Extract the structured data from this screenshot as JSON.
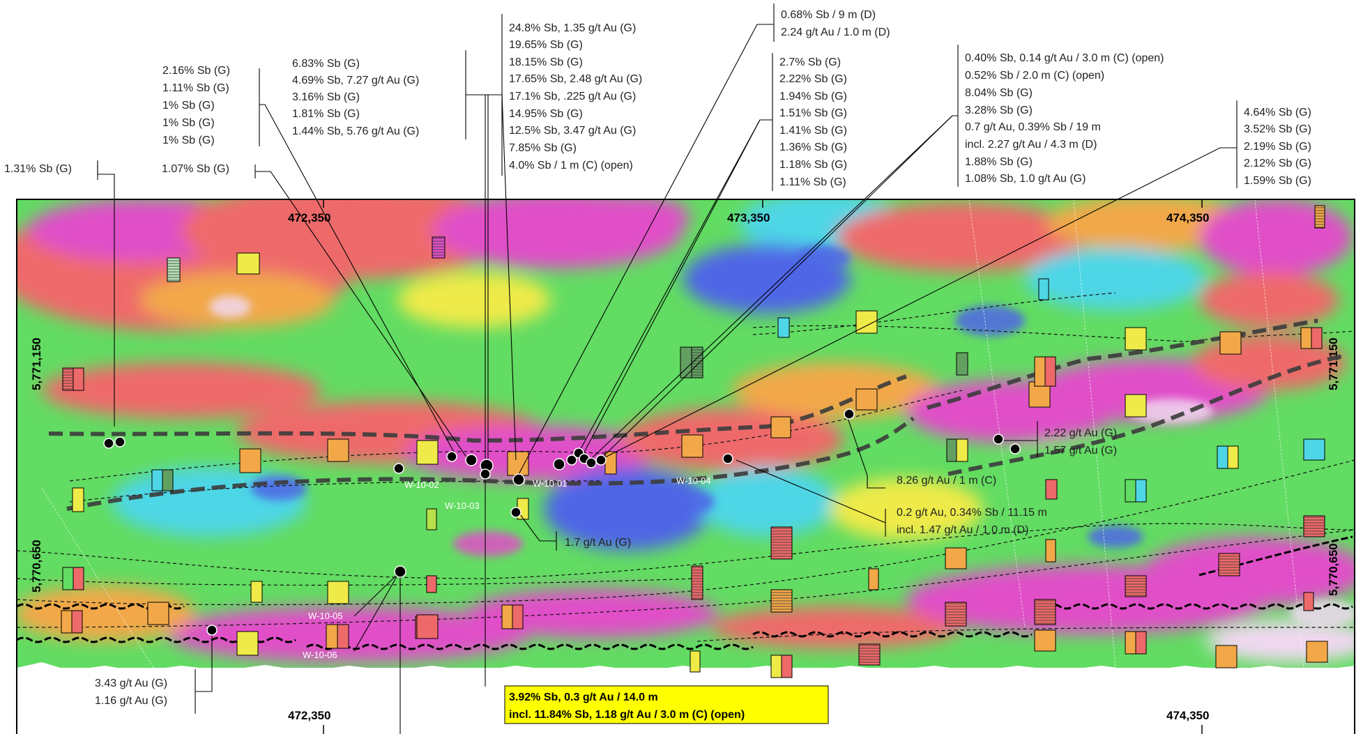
{
  "coordinates": {
    "easting_top": [
      "472,350",
      "473,350",
      "474,350"
    ],
    "easting_bottom": [
      "472,350",
      "474,350"
    ],
    "northing_left": [
      "5,771,150",
      "5,770,650"
    ],
    "northing_right": [
      "5,771,150",
      "5,770,650"
    ]
  },
  "drill_holes": [
    "W-10-02",
    "W-10-01",
    "W-10-03",
    "W-10-04",
    "W-10-05",
    "W-10-06"
  ],
  "callouts": {
    "c1": [
      "1.31% Sb (G)"
    ],
    "c2": [
      "2.16% Sb (G)",
      "1.11% Sb (G)",
      "1% Sb (G)",
      "1% Sb (G)",
      "1% Sb (G)"
    ],
    "c3": [
      "1.07% Sb (G)"
    ],
    "c4": [
      "6.83% Sb (G)",
      "4.69% Sb, 7.27 g/t Au (G)",
      "3.16% Sb (G)",
      "1.81% Sb (G)",
      "1.44% Sb, 5.76 g/t Au (G)"
    ],
    "c5": [
      "24.8% Sb, 1.35 g/t Au  (G)",
      "19.65% Sb (G)",
      "18.15% Sb (G)",
      "17.65% Sb, 2.48 g/t Au (G)",
      "17.1% Sb, .225 g/t Au (G)",
      "14.95% Sb (G)",
      "12.5% Sb, 3.47 g/t Au (G)",
      "7.85% Sb (G)",
      "4.0% Sb / 1 m (C) (open)"
    ],
    "c6": [
      "0.68% Sb / 9 m (D)",
      "2.24 g/t Au / 1.0 m (D)"
    ],
    "c7": [
      "2.7% Sb (G)",
      "2.22% Sb (G)",
      "1.94% Sb (G)",
      "1.51% Sb (G)",
      "1.41% Sb (G)",
      "1.36% Sb (G)",
      "1.18% Sb (G)",
      "1.11% Sb (G)"
    ],
    "c8": [
      "0.40% Sb, 0.14 g/t Au / 3.0 m (C) (open)",
      "0.52% Sb / 2.0 m (C) (open)",
      "8.04% Sb (G)",
      "3.28% Sb (G)",
      "0.7 g/t Au, 0.39% Sb / 19 m",
      "incl. 2.27 g/t Au / 4.3 m (D)",
      "1.88% Sb (G)",
      "1.08% Sb, 1.0 g/t Au (G)"
    ],
    "c9": [
      "4.64% Sb (G)",
      "3.52% Sb (G)",
      "2.19% Sb (G)",
      "2.12% Sb (G)",
      "1.59% Sb (G)"
    ],
    "c10": [
      "2.22 g/t Au (G)",
      "1.57 g/t Au (G)"
    ],
    "c11": [
      "8.26 g/t Au / 1 m (C)"
    ],
    "c12": [
      "0.2 g/t Au, 0.34% Sb / 11.15 m",
      "incl. 1.47 g/t Au / 1.0 m (D)"
    ],
    "c13": [
      "1.7 g/t Au (G)"
    ],
    "c14": [
      "3.43 g/t Au (G)",
      "1.16 g/t Au (G)"
    ],
    "highlight": [
      "3.92% Sb, 0.3 g/t Au / 14.0 m",
      "incl. 11.84% Sb, 1.18 g/t Au / 3.0 m (C) (open)"
    ]
  },
  "colors": {
    "magenta": "#e050c8",
    "red": "#ee6a6a",
    "orange": "#f2a848",
    "yellow": "#eeea48",
    "green": "#62dc62",
    "cyan": "#4ed6e6",
    "blue": "#4f66e6",
    "highlight_box": "#ffff00"
  }
}
